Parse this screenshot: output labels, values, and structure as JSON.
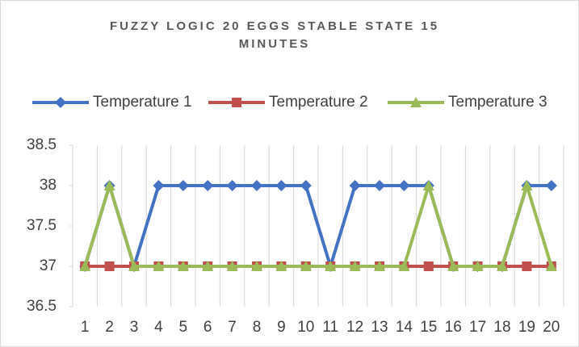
{
  "chart_data": {
    "type": "line",
    "title": "FUZZY LOGIC 20 EGGS STABLE STATE 15 MINUTES",
    "categories": [
      "1",
      "2",
      "3",
      "4",
      "5",
      "6",
      "7",
      "8",
      "9",
      "10",
      "11",
      "12",
      "13",
      "14",
      "15",
      "16",
      "17",
      "18",
      "19",
      "20"
    ],
    "series": [
      {
        "name": "Temperature 1",
        "color": "#4472c4",
        "marker": "diamond",
        "values": [
          37,
          38,
          37,
          38,
          38,
          38,
          38,
          38,
          38,
          38,
          37,
          38,
          38,
          38,
          38,
          37,
          37,
          37,
          38,
          38
        ]
      },
      {
        "name": "Temperature 2",
        "color": "#c0504d",
        "marker": "square",
        "values": [
          37,
          37,
          37,
          37,
          37,
          37,
          37,
          37,
          37,
          37,
          37,
          37,
          37,
          37,
          37,
          37,
          37,
          37,
          37,
          37
        ]
      },
      {
        "name": "Temperature 3",
        "color": "#9bbb59",
        "marker": "triangle",
        "values": [
          37,
          38,
          37,
          37,
          37,
          37,
          37,
          37,
          37,
          37,
          37,
          37,
          37,
          37,
          38,
          37,
          37,
          37,
          38,
          37
        ]
      }
    ],
    "ylim": [
      36.5,
      38.5
    ],
    "yticks": [
      36.5,
      37,
      37.5,
      38,
      38.5
    ],
    "grid": "vertical",
    "legend": "top"
  }
}
